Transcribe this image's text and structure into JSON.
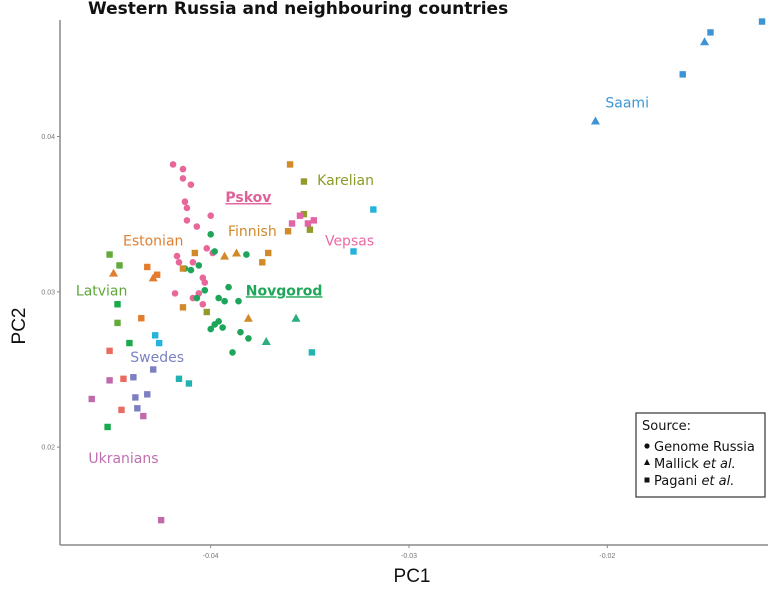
{
  "chart_data": {
    "type": "scatter",
    "title": "Western Russia and neighbouring countries",
    "xlabel": "PC1",
    "ylabel": "PC2",
    "xlim": [
      -0.0476,
      -0.0119
    ],
    "ylim": [
      0.0137,
      0.0475
    ],
    "xticks": [
      {
        "value": -0.04,
        "label": "-0.04"
      },
      {
        "value": -0.03,
        "label": "-0.03"
      },
      {
        "value": -0.02,
        "label": "-0.02"
      }
    ],
    "yticks": [
      {
        "value": 0.02,
        "label": "0.02"
      },
      {
        "value": 0.03,
        "label": "0.03"
      },
      {
        "value": 0.04,
        "label": "0.04"
      }
    ],
    "grid": false,
    "legend": {
      "title": "Source:",
      "position": "bottom-right",
      "entries": [
        {
          "shape": "circle",
          "label": "Genome Russia",
          "italic": ""
        },
        {
          "shape": "triangle",
          "label": "Mallick ",
          "italic": "et al."
        },
        {
          "shape": "square",
          "label": "Pagani ",
          "italic": "et al."
        }
      ]
    },
    "series": [
      {
        "group": "Pskov",
        "color": "#e8679a",
        "shape": "circle",
        "points": [
          [
            -0.0419,
            0.0382
          ],
          [
            -0.0414,
            0.0379
          ],
          [
            -0.0414,
            0.0373
          ],
          [
            -0.041,
            0.0369
          ],
          [
            -0.0413,
            0.0358
          ],
          [
            -0.0412,
            0.0354
          ],
          [
            -0.04,
            0.0349
          ],
          [
            -0.0412,
            0.0346
          ],
          [
            -0.0407,
            0.0342
          ],
          [
            -0.0402,
            0.0328
          ],
          [
            -0.0399,
            0.0325
          ],
          [
            -0.0417,
            0.0323
          ],
          [
            -0.0416,
            0.0319
          ],
          [
            -0.0409,
            0.0319
          ],
          [
            -0.0404,
            0.0309
          ],
          [
            -0.0403,
            0.0306
          ],
          [
            -0.0418,
            0.0299
          ],
          [
            -0.0406,
            0.0299
          ],
          [
            -0.0409,
            0.0296
          ],
          [
            -0.0404,
            0.0292
          ]
        ]
      },
      {
        "group": "Novgorod",
        "color": "#1ea55a",
        "shape": "circle",
        "points": [
          [
            -0.04,
            0.0337
          ],
          [
            -0.0398,
            0.0326
          ],
          [
            -0.0406,
            0.0317
          ],
          [
            -0.041,
            0.0314
          ],
          [
            -0.0413,
            0.0315
          ],
          [
            -0.0382,
            0.0324
          ],
          [
            -0.0403,
            0.0301
          ],
          [
            -0.0391,
            0.0303
          ],
          [
            -0.0407,
            0.0296
          ],
          [
            -0.0396,
            0.0296
          ],
          [
            -0.0393,
            0.0294
          ],
          [
            -0.0386,
            0.0294
          ],
          [
            -0.0396,
            0.0281
          ],
          [
            -0.0398,
            0.0279
          ],
          [
            -0.04,
            0.0276
          ],
          [
            -0.0394,
            0.0277
          ],
          [
            -0.0385,
            0.0274
          ],
          [
            -0.0381,
            0.027
          ],
          [
            -0.0389,
            0.0261
          ]
        ]
      },
      {
        "group": "Novgorod",
        "color": "#2aae7c",
        "shape": "triangle",
        "points": [
          [
            -0.0357,
            0.0283
          ],
          [
            -0.0372,
            0.0268
          ]
        ]
      },
      {
        "group": "Finnish",
        "color": "#d08a2a",
        "shape": "triangle",
        "points": [
          [
            -0.0393,
            0.0323
          ],
          [
            -0.0387,
            0.0325
          ],
          [
            -0.0381,
            0.0283
          ]
        ]
      },
      {
        "group": "Finnish",
        "color": "#d08a2a",
        "shape": "square",
        "points": [
          [
            -0.036,
            0.0382
          ],
          [
            -0.0371,
            0.0325
          ],
          [
            -0.0374,
            0.0319
          ],
          [
            -0.0408,
            0.0325
          ],
          [
            -0.0361,
            0.0339
          ],
          [
            -0.0414,
            0.029
          ],
          [
            -0.0414,
            0.0315
          ]
        ]
      },
      {
        "group": "Estonian",
        "color": "#e27d2f",
        "shape": "triangle",
        "points": [
          [
            -0.0449,
            0.0312
          ],
          [
            -0.0429,
            0.0309
          ]
        ]
      },
      {
        "group": "Estonian",
        "color": "#e27d2f",
        "shape": "square",
        "points": [
          [
            -0.0432,
            0.0316
          ],
          [
            -0.0427,
            0.0311
          ],
          [
            -0.0435,
            0.0283
          ]
        ]
      },
      {
        "group": "Karelian",
        "color": "#929a2a",
        "shape": "square",
        "points": [
          [
            -0.0353,
            0.0371
          ],
          [
            -0.0353,
            0.035
          ],
          [
            -0.035,
            0.034
          ],
          [
            -0.0402,
            0.0287
          ]
        ]
      },
      {
        "group": "Vepsas",
        "color": "#e264a4",
        "shape": "square",
        "points": [
          [
            -0.0359,
            0.0344
          ],
          [
            -0.0355,
            0.0349
          ],
          [
            -0.0348,
            0.0346
          ],
          [
            -0.0351,
            0.0344
          ]
        ]
      },
      {
        "group": "",
        "color": "#25b3dc",
        "shape": "square",
        "points": [
          [
            -0.0318,
            0.0353
          ],
          [
            -0.0328,
            0.0326
          ],
          [
            -0.0428,
            0.0272
          ],
          [
            -0.0426,
            0.0267
          ]
        ]
      },
      {
        "group": "",
        "color": "#22b3b0",
        "shape": "square",
        "points": [
          [
            -0.0349,
            0.0261
          ],
          [
            -0.0416,
            0.0244
          ],
          [
            -0.0411,
            0.0241
          ]
        ]
      },
      {
        "group": "Latvian",
        "color": "#63a93c",
        "shape": "square",
        "points": [
          [
            -0.0451,
            0.0324
          ],
          [
            -0.0446,
            0.0317
          ],
          [
            -0.0447,
            0.028
          ]
        ]
      },
      {
        "group": "",
        "color": "#1aa94c",
        "shape": "square",
        "points": [
          [
            -0.0447,
            0.0292
          ],
          [
            -0.0441,
            0.0267
          ],
          [
            -0.0452,
            0.0213
          ]
        ]
      },
      {
        "group": "Swedes",
        "color": "#7d80c0",
        "shape": "square",
        "points": [
          [
            -0.0429,
            0.025
          ],
          [
            -0.0439,
            0.0245
          ],
          [
            -0.0438,
            0.0232
          ],
          [
            -0.0437,
            0.0225
          ],
          [
            -0.0432,
            0.0234
          ]
        ]
      },
      {
        "group": "",
        "color": "#ea6b5f",
        "shape": "square",
        "points": [
          [
            -0.0451,
            0.0262
          ],
          [
            -0.0444,
            0.0244
          ],
          [
            -0.0445,
            0.0224
          ]
        ]
      },
      {
        "group": "Ukranians",
        "color": "#c06aac",
        "shape": "square",
        "points": [
          [
            -0.0451,
            0.0243
          ],
          [
            -0.046,
            0.0231
          ],
          [
            -0.0434,
            0.022
          ],
          [
            -0.0425,
            0.0153
          ]
        ]
      },
      {
        "group": "Saami",
        "color": "#3c94d6",
        "shape": "square",
        "points": [
          [
            -0.0122,
            0.0474
          ],
          [
            -0.0148,
            0.0467
          ],
          [
            -0.0162,
            0.044
          ]
        ]
      },
      {
        "group": "Saami",
        "color": "#3c94d6",
        "shape": "triangle",
        "points": [
          [
            -0.0206,
            0.041
          ],
          [
            -0.0151,
            0.0461
          ]
        ]
      }
    ],
    "annotations": [
      {
        "text": "Saami",
        "x": -0.019,
        "y": 0.0422,
        "color": "#3d95d4",
        "bold": false,
        "underline": false
      },
      {
        "text": "Karelian",
        "x": -0.0332,
        "y": 0.0372,
        "color": "#8c9b28",
        "bold": false,
        "underline": false
      },
      {
        "text": "Pskov",
        "x": -0.0381,
        "y": 0.0361,
        "color": "#e0609a",
        "bold": true,
        "underline": true
      },
      {
        "text": "Finnish",
        "x": -0.0379,
        "y": 0.0339,
        "color": "#d08a2a",
        "bold": false,
        "underline": false
      },
      {
        "text": "Estonian",
        "x": -0.0429,
        "y": 0.0333,
        "color": "#e07f30",
        "bold": false,
        "underline": false
      },
      {
        "text": "Vepsas",
        "x": -0.033,
        "y": 0.0333,
        "color": "#e96aa5",
        "bold": false,
        "underline": false
      },
      {
        "text": "Latvian",
        "x": -0.0455,
        "y": 0.0301,
        "color": "#5ea63a",
        "bold": false,
        "underline": false
      },
      {
        "text": "Novgorod",
        "x": -0.0363,
        "y": 0.0301,
        "color": "#1ea659",
        "bold": true,
        "underline": true
      },
      {
        "text": "Swedes",
        "x": -0.0427,
        "y": 0.0258,
        "color": "#7b83c2",
        "bold": false,
        "underline": false
      },
      {
        "text": "Ukranians",
        "x": -0.0444,
        "y": 0.0193,
        "color": "#c070b0",
        "bold": false,
        "underline": false
      }
    ]
  }
}
